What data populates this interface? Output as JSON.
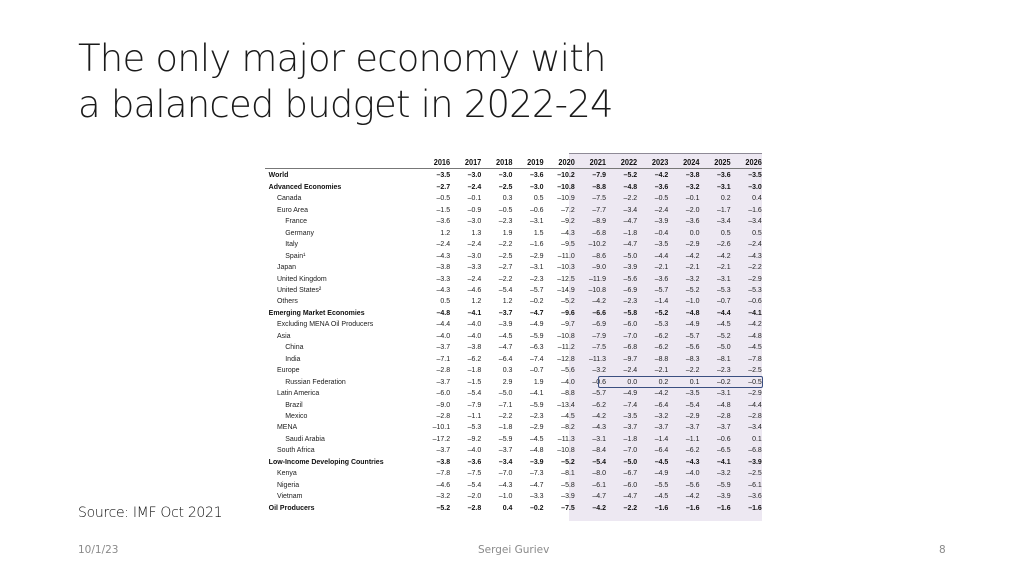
{
  "slide": {
    "title_line1": "The only major economy with",
    "title_line2": "a balanced budget in 2022-24",
    "source": "Source: IMF Oct 2021",
    "footer_date": "10/1/23",
    "footer_author": "Sergei Guriev",
    "footer_page": "8"
  },
  "table": {
    "years": [
      "2016",
      "2017",
      "2018",
      "2019",
      "2020",
      "2021",
      "2022",
      "2023",
      "2024",
      "2025",
      "2026"
    ],
    "projection_start_year": "2021",
    "highlight": {
      "row": "Russian Federation",
      "from_year": "2022",
      "to_year": "2026",
      "color": "#3b4f80"
    },
    "shade_color": "#ede8f2",
    "rows": [
      {
        "label": "World",
        "level": 0,
        "bold": true,
        "values": [
          "–3.5",
          "–3.0",
          "–3.0",
          "–3.6",
          "–10.2",
          "–7.9",
          "–5.2",
          "–4.2",
          "–3.8",
          "–3.6",
          "–3.5"
        ]
      },
      {
        "label": "Advanced Economies",
        "level": 0,
        "bold": true,
        "values": [
          "–2.7",
          "–2.4",
          "–2.5",
          "–3.0",
          "–10.8",
          "–8.8",
          "–4.8",
          "–3.6",
          "–3.2",
          "–3.1",
          "–3.0"
        ]
      },
      {
        "label": "Canada",
        "level": 1,
        "bold": false,
        "values": [
          "–0.5",
          "–0.1",
          "0.3",
          "0.5",
          "–10.9",
          "–7.5",
          "–2.2",
          "–0.5",
          "–0.1",
          "0.2",
          "0.4"
        ]
      },
      {
        "label": "Euro Area",
        "level": 1,
        "bold": false,
        "values": [
          "–1.5",
          "–0.9",
          "–0.5",
          "–0.6",
          "–7.2",
          "–7.7",
          "–3.4",
          "–2.4",
          "–2.0",
          "–1.7",
          "–1.6"
        ]
      },
      {
        "label": "France",
        "level": 2,
        "bold": false,
        "values": [
          "–3.6",
          "–3.0",
          "–2.3",
          "–3.1",
          "–9.2",
          "–8.9",
          "–4.7",
          "–3.9",
          "–3.6",
          "–3.4",
          "–3.4"
        ]
      },
      {
        "label": "Germany",
        "level": 2,
        "bold": false,
        "values": [
          "1.2",
          "1.3",
          "1.9",
          "1.5",
          "–4.3",
          "–6.8",
          "–1.8",
          "–0.4",
          "0.0",
          "0.5",
          "0.5"
        ]
      },
      {
        "label": "Italy",
        "level": 2,
        "bold": false,
        "values": [
          "–2.4",
          "–2.4",
          "–2.2",
          "–1.6",
          "–9.5",
          "–10.2",
          "–4.7",
          "–3.5",
          "–2.9",
          "–2.6",
          "–2.4"
        ]
      },
      {
        "label": "Spain¹",
        "level": 2,
        "bold": false,
        "values": [
          "–4.3",
          "–3.0",
          "–2.5",
          "–2.9",
          "–11.0",
          "–8.6",
          "–5.0",
          "–4.4",
          "–4.2",
          "–4.2",
          "–4.3"
        ]
      },
      {
        "label": "Japan",
        "level": 1,
        "bold": false,
        "values": [
          "–3.8",
          "–3.3",
          "–2.7",
          "–3.1",
          "–10.3",
          "–9.0",
          "–3.9",
          "–2.1",
          "–2.1",
          "–2.1",
          "–2.2"
        ]
      },
      {
        "label": "United Kingdom",
        "level": 1,
        "bold": false,
        "values": [
          "–3.3",
          "–2.4",
          "–2.2",
          "–2.3",
          "–12.5",
          "–11.9",
          "–5.6",
          "–3.6",
          "–3.2",
          "–3.1",
          "–2.9"
        ]
      },
      {
        "label": "United States²",
        "level": 1,
        "bold": false,
        "values": [
          "–4.3",
          "–4.6",
          "–5.4",
          "–5.7",
          "–14.9",
          "–10.8",
          "–6.9",
          "–5.7",
          "–5.2",
          "–5.3",
          "–5.3"
        ]
      },
      {
        "label": "Others",
        "level": 1,
        "bold": false,
        "values": [
          "0.5",
          "1.2",
          "1.2",
          "–0.2",
          "–5.2",
          "–4.2",
          "–2.3",
          "–1.4",
          "–1.0",
          "–0.7",
          "–0.6"
        ]
      },
      {
        "label": "Emerging Market Economies",
        "level": 0,
        "bold": true,
        "values": [
          "–4.8",
          "–4.1",
          "–3.7",
          "–4.7",
          "–9.6",
          "–6.6",
          "–5.8",
          "–5.2",
          "–4.8",
          "–4.4",
          "–4.1"
        ]
      },
      {
        "label": "Excluding MENA Oil Producers",
        "level": 1,
        "bold": false,
        "values": [
          "–4.4",
          "–4.0",
          "–3.9",
          "–4.9",
          "–9.7",
          "–6.9",
          "–6.0",
          "–5.3",
          "–4.9",
          "–4.5",
          "–4.2"
        ]
      },
      {
        "label": "Asia",
        "level": 1,
        "bold": false,
        "values": [
          "–4.0",
          "–4.0",
          "–4.5",
          "–5.9",
          "–10.8",
          "–7.9",
          "–7.0",
          "–6.2",
          "–5.7",
          "–5.2",
          "–4.8"
        ]
      },
      {
        "label": "China",
        "level": 2,
        "bold": false,
        "values": [
          "–3.7",
          "–3.8",
          "–4.7",
          "–6.3",
          "–11.2",
          "–7.5",
          "–6.8",
          "–6.2",
          "–5.6",
          "–5.0",
          "–4.5"
        ]
      },
      {
        "label": "India",
        "level": 2,
        "bold": false,
        "values": [
          "–7.1",
          "–6.2",
          "–6.4",
          "–7.4",
          "–12.8",
          "–11.3",
          "–9.7",
          "–8.8",
          "–8.3",
          "–8.1",
          "–7.8"
        ]
      },
      {
        "label": "Europe",
        "level": 1,
        "bold": false,
        "values": [
          "–2.8",
          "–1.8",
          "0.3",
          "–0.7",
          "–5.6",
          "–3.2",
          "–2.4",
          "–2.1",
          "–2.2",
          "–2.3",
          "–2.5"
        ]
      },
      {
        "label": "Russian Federation",
        "level": 2,
        "bold": false,
        "values": [
          "–3.7",
          "–1.5",
          "2.9",
          "1.9",
          "–4.0",
          "–0.6",
          "0.0",
          "0.2",
          "0.1",
          "–0.2",
          "–0.5"
        ]
      },
      {
        "label": "Latin America",
        "level": 1,
        "bold": false,
        "values": [
          "–6.0",
          "–5.4",
          "–5.0",
          "–4.1",
          "–8.8",
          "–5.7",
          "–4.9",
          "–4.2",
          "–3.5",
          "–3.1",
          "–2.9"
        ]
      },
      {
        "label": "Brazil",
        "level": 2,
        "bold": false,
        "values": [
          "–9.0",
          "–7.9",
          "–7.1",
          "–5.9",
          "–13.4",
          "–6.2",
          "–7.4",
          "–6.4",
          "–5.4",
          "–4.8",
          "–4.4"
        ]
      },
      {
        "label": "Mexico",
        "level": 2,
        "bold": false,
        "values": [
          "–2.8",
          "–1.1",
          "–2.2",
          "–2.3",
          "–4.5",
          "–4.2",
          "–3.5",
          "–3.2",
          "–2.9",
          "–2.8",
          "–2.8"
        ]
      },
      {
        "label": "MENA",
        "level": 1,
        "bold": false,
        "values": [
          "–10.1",
          "–5.3",
          "–1.8",
          "–2.9",
          "–8.2",
          "–4.3",
          "–3.7",
          "–3.7",
          "–3.7",
          "–3.7",
          "–3.4"
        ]
      },
      {
        "label": "Saudi Arabia",
        "level": 2,
        "bold": false,
        "values": [
          "–17.2",
          "–9.2",
          "–5.9",
          "–4.5",
          "–11.3",
          "–3.1",
          "–1.8",
          "–1.4",
          "–1.1",
          "–0.6",
          "0.1"
        ]
      },
      {
        "label": "South Africa",
        "level": 1,
        "bold": false,
        "values": [
          "–3.7",
          "–4.0",
          "–3.7",
          "–4.8",
          "–10.8",
          "–8.4",
          "–7.0",
          "–6.4",
          "–6.2",
          "–6.5",
          "–6.8"
        ]
      },
      {
        "label": "Low-Income Developing Countries",
        "level": 0,
        "bold": true,
        "values": [
          "–3.8",
          "–3.6",
          "–3.4",
          "–3.9",
          "–5.2",
          "–5.4",
          "–5.0",
          "–4.5",
          "–4.3",
          "–4.1",
          "–3.9"
        ]
      },
      {
        "label": "Kenya",
        "level": 1,
        "bold": false,
        "values": [
          "–7.8",
          "–7.5",
          "–7.0",
          "–7.3",
          "–8.1",
          "–8.0",
          "–6.7",
          "–4.9",
          "–4.0",
          "–3.2",
          "–2.5"
        ]
      },
      {
        "label": "Nigeria",
        "level": 1,
        "bold": false,
        "values": [
          "–4.6",
          "–5.4",
          "–4.3",
          "–4.7",
          "–5.8",
          "–6.1",
          "–6.0",
          "–5.5",
          "–5.6",
          "–5.9",
          "–6.1"
        ]
      },
      {
        "label": "Vietnam",
        "level": 1,
        "bold": false,
        "values": [
          "–3.2",
          "–2.0",
          "–1.0",
          "–3.3",
          "–3.9",
          "–4.7",
          "–4.7",
          "–4.5",
          "–4.2",
          "–3.9",
          "–3.6"
        ]
      },
      {
        "label": "Oil Producers",
        "level": 0,
        "bold": true,
        "values": [
          "–5.2",
          "–2.8",
          "0.4",
          "–0.2",
          "–7.5",
          "–4.2",
          "–2.2",
          "–1.6",
          "–1.6",
          "–1.6",
          "–1.6"
        ]
      }
    ]
  }
}
